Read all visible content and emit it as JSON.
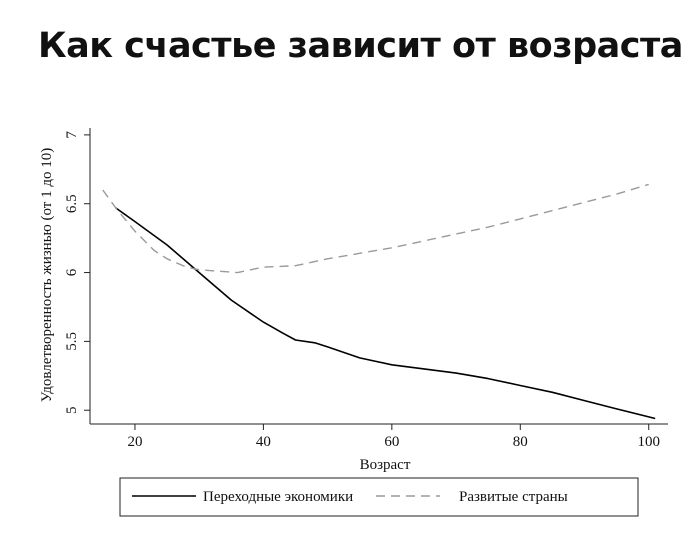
{
  "title": "Как счастье зависит от возраста",
  "colors": {
    "transition": "#000000",
    "developed": "#9a9a9a"
  },
  "chart_data": {
    "type": "line",
    "xlabel": "Возраст",
    "ylabel": "Удовлетворенность жизнью (от 1 до 10)",
    "xlim": [
      13,
      103
    ],
    "ylim": [
      4.9,
      7.05
    ],
    "xticks": [
      20,
      40,
      60,
      80,
      100
    ],
    "yticks": [
      5,
      5.5,
      6,
      6.5,
      7
    ],
    "xtick_labels": [
      "20",
      "40",
      "60",
      "80",
      "100"
    ],
    "ytick_labels": [
      "5",
      "5.5",
      "6",
      "6.5",
      "7"
    ],
    "grid": false,
    "legend_position": "bottom",
    "series": [
      {
        "name": "Переходные экономики",
        "style": "solid",
        "x": [
          17,
          20,
          25,
          30,
          35,
          40,
          43,
          45,
          48,
          50,
          55,
          60,
          65,
          70,
          75,
          80,
          85,
          90,
          95,
          101
        ],
        "y": [
          6.47,
          6.37,
          6.2,
          6.0,
          5.8,
          5.64,
          5.56,
          5.51,
          5.49,
          5.46,
          5.38,
          5.33,
          5.3,
          5.27,
          5.23,
          5.18,
          5.13,
          5.07,
          5.01,
          4.94
        ]
      },
      {
        "name": "Развитые страны",
        "style": "dashed",
        "x": [
          15,
          17,
          20,
          23,
          25,
          28,
          30,
          33,
          36,
          38,
          40,
          45,
          50,
          55,
          60,
          65,
          70,
          75,
          80,
          85,
          90,
          95,
          100
        ],
        "y": [
          6.6,
          6.47,
          6.3,
          6.16,
          6.1,
          6.04,
          6.02,
          6.01,
          6.0,
          6.02,
          6.04,
          6.05,
          6.1,
          6.14,
          6.18,
          6.23,
          6.28,
          6.33,
          6.39,
          6.45,
          6.51,
          6.57,
          6.64
        ]
      }
    ]
  }
}
